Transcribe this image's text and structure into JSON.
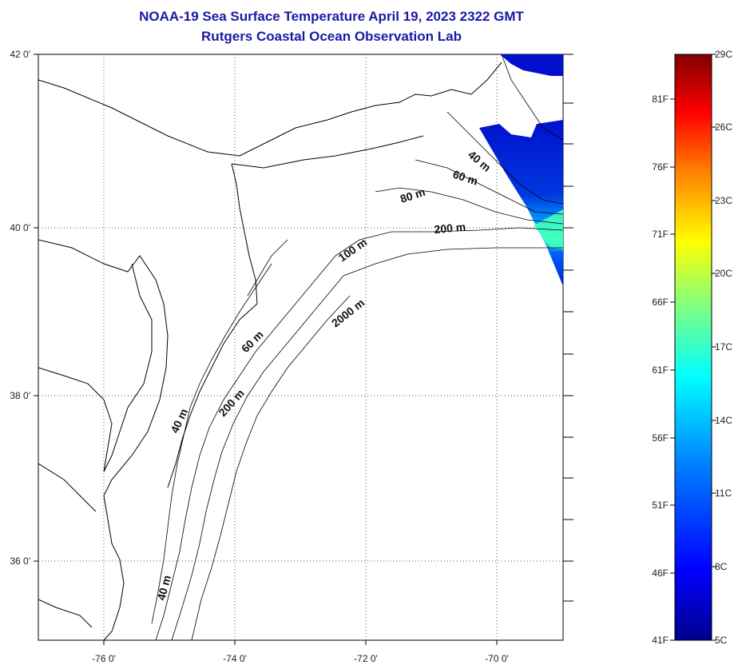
{
  "title": "NOAA-19 Sea Surface Temperature April 19, 2023 2322 GMT",
  "subtitle": "Rutgers Coastal Ocean Observation Lab",
  "map": {
    "lat_labels": [
      "42 0'",
      "40 0'",
      "38 0'",
      "36 0'"
    ],
    "lon_labels": [
      "-76 0'",
      "-74 0'",
      "-72 0'",
      "-70 0'"
    ],
    "lat_range": [
      35,
      42
    ],
    "lon_range": [
      -77,
      -69
    ],
    "grid": true,
    "depth_labels": [
      "40 m",
      "60 m",
      "80 m",
      "200 m",
      "100 m",
      "2000 m",
      "60 m",
      "200 m",
      "40 m",
      "40 m"
    ]
  },
  "colorbar": {
    "celsius_labels": [
      "29C",
      "26C",
      "23C",
      "20C",
      "17C",
      "14C",
      "11C",
      "8C",
      "5C"
    ],
    "fahrenheit_labels": [
      "81F",
      "76F",
      "71F",
      "66F",
      "61F",
      "56F",
      "51F",
      "46F",
      "41F"
    ],
    "colors": [
      "#00008f",
      "#0000ff",
      "#0080ff",
      "#00ffff",
      "#80ff80",
      "#ffff00",
      "#ff8000",
      "#ff0000",
      "#800000"
    ]
  }
}
